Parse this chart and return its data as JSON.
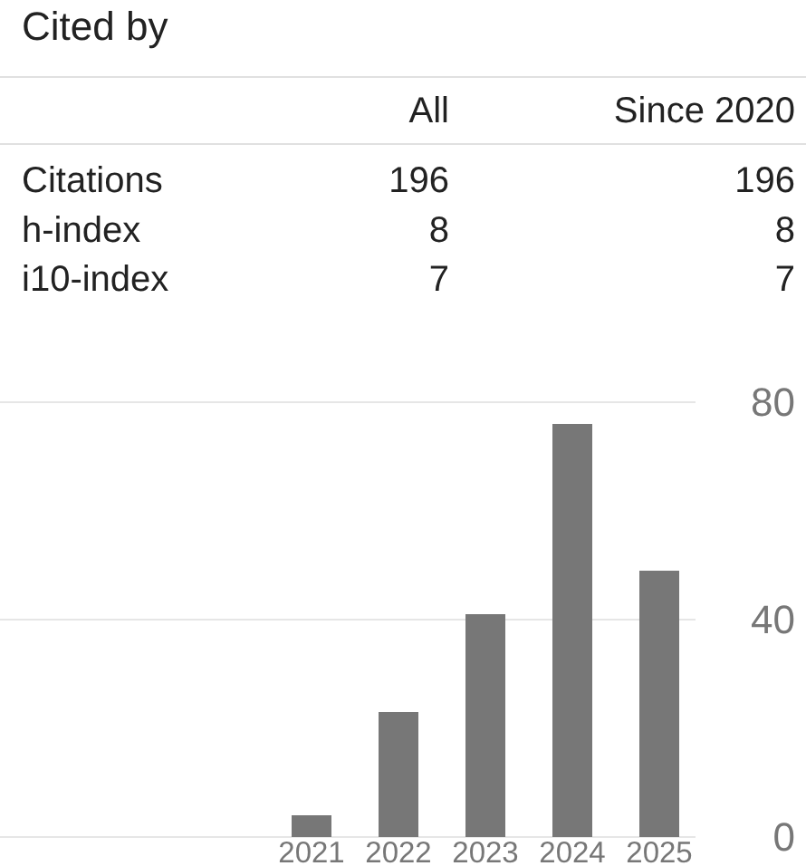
{
  "chart_data": [
    {
      "type": "other",
      "title": "Cited by",
      "categories": [
        "Citations",
        "h-index",
        "i10-index"
      ],
      "series": [
        {
          "name": "All",
          "values": [
            196,
            8,
            7
          ]
        },
        {
          "name": "Since 2020",
          "values": [
            196,
            8,
            7
          ]
        }
      ],
      "data_labels": true
    },
    {
      "type": "bar",
      "categories": [
        "2021",
        "2022",
        "2023",
        "2024",
        "2025"
      ],
      "values": [
        4,
        23,
        41,
        76,
        49
      ],
      "color": "#777777",
      "ylim": [
        0,
        80
      ],
      "yticks": [
        0,
        40,
        80
      ],
      "grid": "y"
    }
  ]
}
